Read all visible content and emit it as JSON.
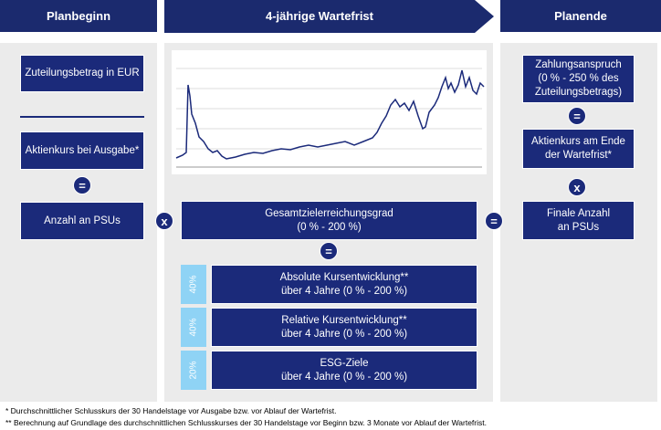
{
  "header": {
    "left": "Planbeginn",
    "middle": "4-jährige Wartefrist",
    "right": "Planende"
  },
  "left": {
    "grant_amount": "Zuteilungsbetrag in EUR",
    "share_price": "Aktienkurs bei Ausgabe*",
    "equals": "=",
    "psus": "Anzahl an PSUs"
  },
  "operators": {
    "times_left": "x",
    "equals_right": "="
  },
  "middle": {
    "total": "Gesamtzielerreichungsgrad\n(0 % - 200 %)",
    "equals": "=",
    "components": [
      {
        "weight": "40%",
        "label": "Absolute Kursentwicklung**\nüber 4 Jahre (0 % - 200 %)"
      },
      {
        "weight": "40%",
        "label": "Relative Kursentwicklung**\nüber 4 Jahre (0 % - 200 %)"
      },
      {
        "weight": "20%",
        "label": "ESG-Ziele\nüber 4 Jahre (0 % - 200 %)"
      }
    ]
  },
  "right": {
    "payout": "Zahlungsanspruch\n(0 % - 250 % des\nZuteilungsbetrags)",
    "equals": "=",
    "share_price": "Aktienkurs am Ende\nder Wartefrist*",
    "times": "x",
    "final": "Finale Anzahl\nan PSUs"
  },
  "footnotes": [
    "* Durchschnittlicher Schlusskurs der 30 Handelstage vor Ausgabe bzw. vor Ablauf der Wartefrist.",
    "** Berechnung auf Grundlage des durchschnittlichen Schlusskurses der 30 Handelstage vor Beginn bzw. 3 Monate vor Ablauf der Wartefrist."
  ]
}
